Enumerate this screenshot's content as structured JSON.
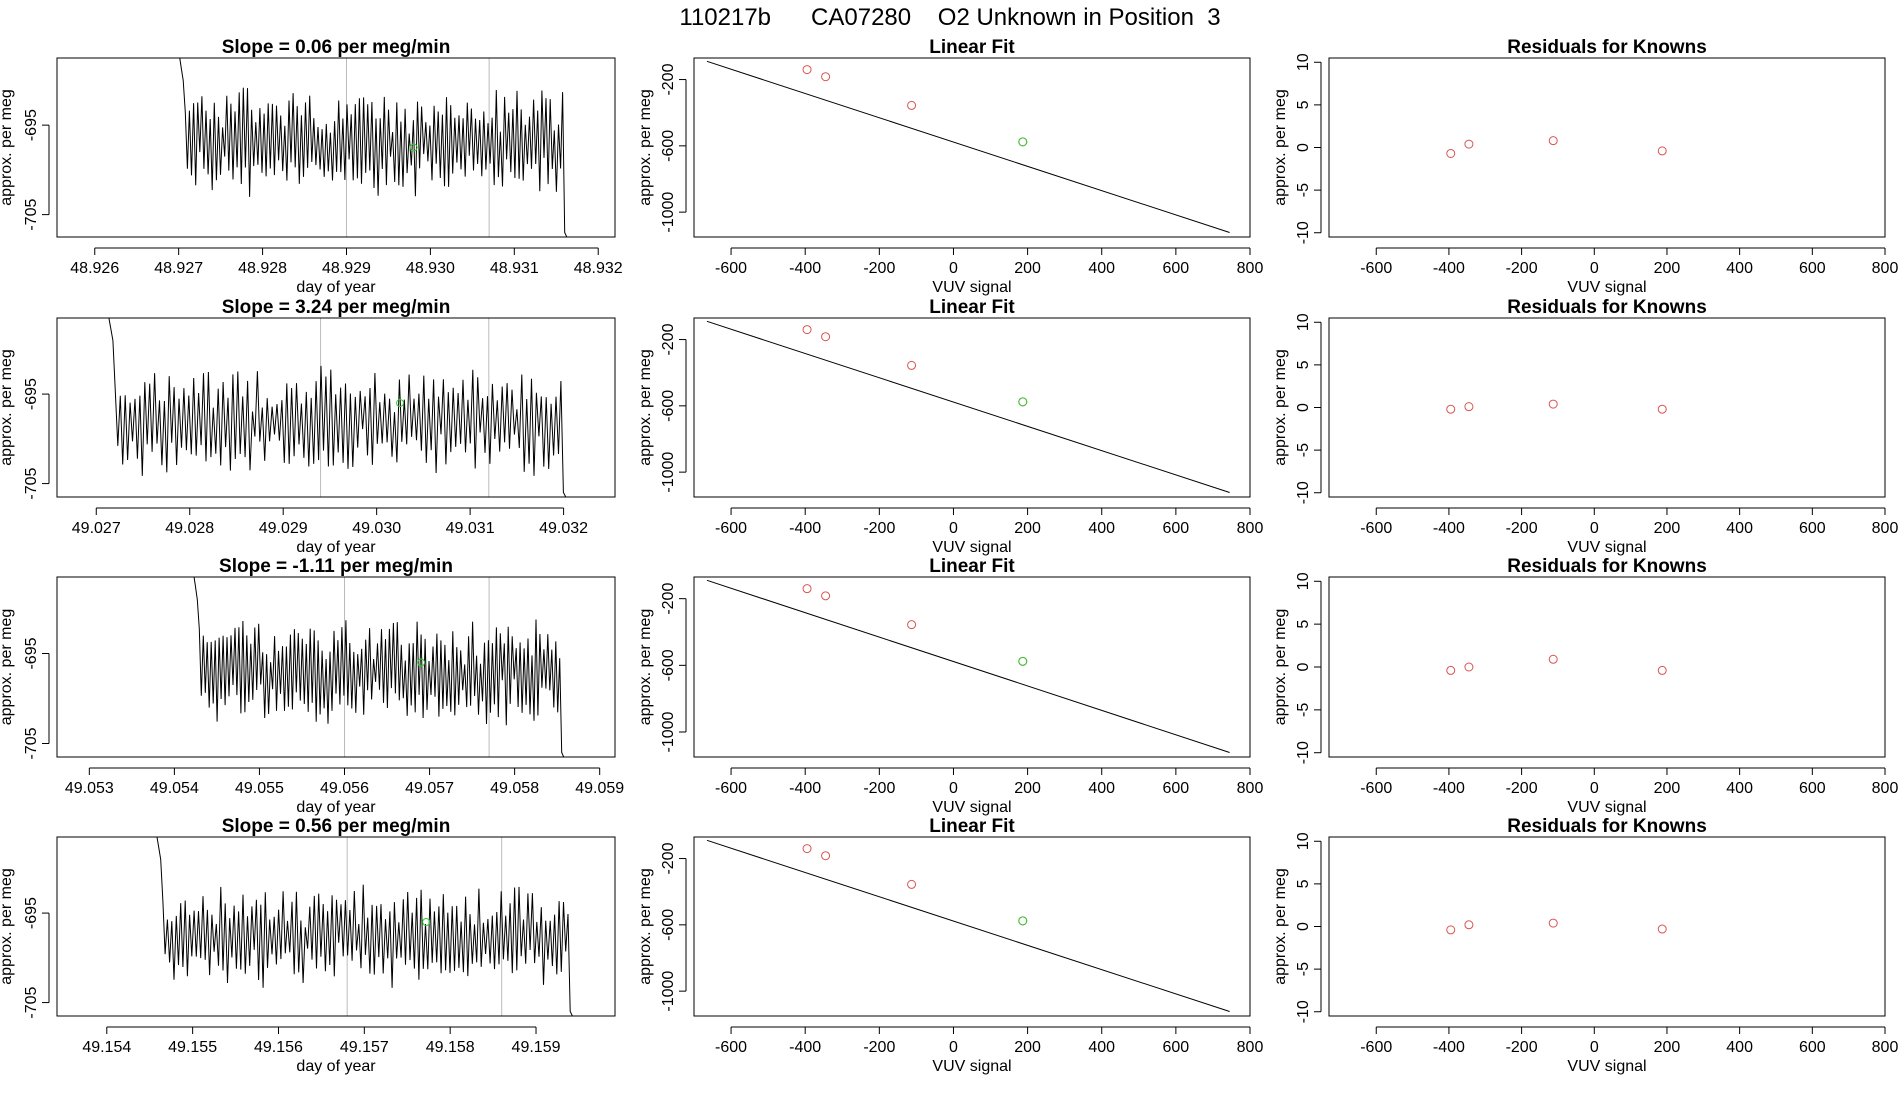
{
  "title": "110217b      CA07280    O2 Unknown in Position  3",
  "colors": {
    "trace": "#000000",
    "vline": "#bbbbbb",
    "known": "#d9534f",
    "unknown": "#33cc33",
    "axis": "#000000"
  },
  "chart_data": [
    {
      "type": "line",
      "row": 0,
      "title": "Slope =  0.06  per meg/min",
      "xlabel": "day of year",
      "ylabel": "approx. per meg",
      "xlim": [
        48.92555,
        48.9322
      ],
      "ylim": [
        -707.5,
        -687.5
      ],
      "xticks": [
        48.926,
        48.927,
        48.928,
        48.929,
        48.93,
        48.931,
        48.932
      ],
      "xtick_labels": [
        "48.926",
        "48.927",
        "48.928",
        "48.929",
        "48.930",
        "48.931",
        "48.932"
      ],
      "yticks": [
        -705,
        -695
      ],
      "ytick_labels": [
        "-705",
        "-695"
      ],
      "vlines": [
        48.929,
        48.9307
      ],
      "trace_x_range": [
        48.92698,
        48.93165
      ],
      "trace_amp": 5,
      "trace_center": -697,
      "seed": 3,
      "point": {
        "x": 48.9298,
        "y": -697.5
      }
    },
    {
      "type": "line",
      "row": 1,
      "title": "Slope =  3.24  per meg/min",
      "xlabel": "day of year",
      "ylabel": "approx. per meg",
      "xlim": [
        49.02658,
        49.03255
      ],
      "ylim": [
        -706.5,
        -686.5
      ],
      "xticks": [
        49.027,
        49.028,
        49.029,
        49.03,
        49.031,
        49.032
      ],
      "xtick_labels": [
        "49.027",
        "49.028",
        "49.029",
        "49.030",
        "49.031",
        "49.032"
      ],
      "yticks": [
        -705,
        -695
      ],
      "ytick_labels": [
        "-705",
        "-695"
      ],
      "vlines": [
        49.0294,
        49.0312
      ],
      "trace_x_range": [
        49.0271,
        49.03205
      ],
      "trace_amp": 5,
      "trace_center": -698,
      "seed": 7,
      "point": {
        "x": 49.03025,
        "y": -696
      }
    },
    {
      "type": "line",
      "row": 2,
      "title": "Slope =  -1.11  per meg/min",
      "xlabel": "day of year",
      "ylabel": "approx. per meg",
      "xlim": [
        49.05262,
        49.05918
      ],
      "ylim": [
        -706.5,
        -686.5
      ],
      "xticks": [
        49.053,
        49.054,
        49.055,
        49.056,
        49.057,
        49.058,
        49.059
      ],
      "xtick_labels": [
        "49.053",
        "49.054",
        "49.055",
        "49.056",
        "49.057",
        "49.058",
        "49.059"
      ],
      "yticks": [
        -705,
        -695
      ],
      "ytick_labels": [
        "-705",
        "-695"
      ],
      "vlines": [
        49.056,
        49.0577
      ],
      "trace_x_range": [
        49.0542,
        49.0586
      ],
      "trace_amp": 5,
      "trace_center": -697,
      "seed": 11,
      "point": {
        "x": 49.0569,
        "y": -696
      }
    },
    {
      "type": "line",
      "row": 3,
      "title": "Slope =  0.56  per meg/min",
      "xlabel": "day of year",
      "ylabel": "approx. per meg",
      "xlim": [
        49.15342,
        49.15992
      ],
      "ylim": [
        -706.5,
        -686.5
      ],
      "xticks": [
        49.154,
        49.155,
        49.156,
        49.157,
        49.158,
        49.159
      ],
      "xtick_labels": [
        "49.154",
        "49.155",
        "49.156",
        "49.157",
        "49.158",
        "49.159"
      ],
      "yticks": [
        -705,
        -695
      ],
      "ytick_labels": [
        "-705",
        "-695"
      ],
      "vlines": [
        49.1568,
        49.1586
      ],
      "trace_x_range": [
        49.15455,
        49.15945
      ],
      "trace_amp": 4.5,
      "trace_center": -697.5,
      "seed": 17,
      "point": {
        "x": 49.15772,
        "y": -696
      }
    },
    {
      "type": "scatter",
      "row": 0,
      "title": "Linear Fit",
      "xlabel": "VUV signal",
      "ylabel": "approx. per meg",
      "xlim": [
        -700,
        800
      ],
      "ylim": [
        -1150,
        -70
      ],
      "xticks": [
        -600,
        -400,
        -200,
        0,
        200,
        400,
        600,
        800
      ],
      "xtick_labels": [
        "-600",
        "-400",
        "-200",
        "0",
        "200",
        "400",
        "600",
        "800"
      ],
      "yticks": [
        -200,
        -600,
        -1000
      ],
      "ytick_labels": [
        "-200",
        "-600",
        "-1000"
      ],
      "fit_line": {
        "x": [
          -665,
          745
        ],
        "y": [
          -90,
          -1123
        ]
      },
      "knowns": {
        "x": [
          -395,
          -345,
          -113,
          187
        ],
        "y": [
          -140,
          -183,
          -356,
          -576
        ]
      },
      "unknown": {
        "x": [
          187
        ],
        "y": [
          -576
        ]
      }
    },
    {
      "type": "scatter",
      "row": 1,
      "title": "Linear Fit",
      "xlabel": "VUV signal",
      "ylabel": "approx. per meg",
      "xlim": [
        -700,
        800
      ],
      "ylim": [
        -1150,
        -70
      ],
      "xticks": [
        -600,
        -400,
        -200,
        0,
        200,
        400,
        600,
        800
      ],
      "xtick_labels": [
        "-600",
        "-400",
        "-200",
        "0",
        "200",
        "400",
        "600",
        "800"
      ],
      "yticks": [
        -200,
        -600,
        -1000
      ],
      "ytick_labels": [
        "-200",
        "-600",
        "-1000"
      ],
      "fit_line": {
        "x": [
          -665,
          745
        ],
        "y": [
          -90,
          -1123
        ]
      },
      "knowns": {
        "x": [
          -395,
          -345,
          -113,
          187
        ],
        "y": [
          -140,
          -183,
          -356,
          -576
        ]
      },
      "unknown": {
        "x": [
          187
        ],
        "y": [
          -576
        ]
      }
    },
    {
      "type": "scatter",
      "row": 2,
      "title": "Linear Fit",
      "xlabel": "VUV signal",
      "ylabel": "approx. per meg",
      "xlim": [
        -700,
        800
      ],
      "ylim": [
        -1150,
        -70
      ],
      "xticks": [
        -600,
        -400,
        -200,
        0,
        200,
        400,
        600,
        800
      ],
      "xtick_labels": [
        "-600",
        "-400",
        "-200",
        "0",
        "200",
        "400",
        "600",
        "800"
      ],
      "yticks": [
        -200,
        -600,
        -1000
      ],
      "ytick_labels": [
        "-200",
        "-600",
        "-1000"
      ],
      "fit_line": {
        "x": [
          -665,
          745
        ],
        "y": [
          -90,
          -1123
        ]
      },
      "knowns": {
        "x": [
          -395,
          -345,
          -113,
          187
        ],
        "y": [
          -140,
          -183,
          -356,
          -576
        ]
      },
      "unknown": {
        "x": [
          187
        ],
        "y": [
          -576
        ]
      }
    },
    {
      "type": "scatter",
      "row": 3,
      "title": "Linear Fit",
      "xlabel": "VUV signal",
      "ylabel": "approx. per meg",
      "xlim": [
        -700,
        800
      ],
      "ylim": [
        -1150,
        -70
      ],
      "xticks": [
        -600,
        -400,
        -200,
        0,
        200,
        400,
        600,
        800
      ],
      "xtick_labels": [
        "-600",
        "-400",
        "-200",
        "0",
        "200",
        "400",
        "600",
        "800"
      ],
      "yticks": [
        -200,
        -600,
        -1000
      ],
      "ytick_labels": [
        "-200",
        "-600",
        "-1000"
      ],
      "fit_line": {
        "x": [
          -665,
          745
        ],
        "y": [
          -90,
          -1123
        ]
      },
      "knowns": {
        "x": [
          -395,
          -345,
          -113,
          187
        ],
        "y": [
          -140,
          -183,
          -356,
          -576
        ]
      },
      "unknown": {
        "x": [
          187
        ],
        "y": [
          -576
        ]
      }
    },
    {
      "type": "scatter",
      "row": 0,
      "title": "Residuals for Knowns",
      "xlabel": "VUV signal",
      "ylabel": "approx. per meg",
      "xlim": [
        -730,
        800
      ],
      "ylim": [
        -10.5,
        10.5
      ],
      "xticks": [
        -600,
        -400,
        -200,
        0,
        200,
        400,
        600,
        800
      ],
      "xtick_labels": [
        "-600",
        "-400",
        "-200",
        "0",
        "200",
        "400",
        "600",
        "800"
      ],
      "yticks": [
        -10,
        -5,
        0,
        5,
        10
      ],
      "ytick_labels": [
        "-10",
        "-5",
        "0",
        "5",
        "10"
      ],
      "knowns": {
        "x": [
          -395,
          -345,
          -113,
          187
        ],
        "y": [
          -0.7,
          0.4,
          0.8,
          -0.4
        ]
      }
    },
    {
      "type": "scatter",
      "row": 1,
      "title": "Residuals for Knowns",
      "xlabel": "VUV signal",
      "ylabel": "approx. per meg",
      "xlim": [
        -730,
        800
      ],
      "ylim": [
        -10.5,
        10.5
      ],
      "xticks": [
        -600,
        -400,
        -200,
        0,
        200,
        400,
        600,
        800
      ],
      "xtick_labels": [
        "-600",
        "-400",
        "-200",
        "0",
        "200",
        "400",
        "600",
        "800"
      ],
      "yticks": [
        -10,
        -5,
        0,
        5,
        10
      ],
      "ytick_labels": [
        "-10",
        "-5",
        "0",
        "5",
        "10"
      ],
      "knowns": {
        "x": [
          -395,
          -345,
          -113,
          187
        ],
        "y": [
          -0.2,
          0.1,
          0.4,
          -0.2
        ]
      }
    },
    {
      "type": "scatter",
      "row": 2,
      "title": "Residuals for Knowns",
      "xlabel": "VUV signal",
      "ylabel": "approx. per meg",
      "xlim": [
        -730,
        800
      ],
      "ylim": [
        -10.5,
        10.5
      ],
      "xticks": [
        -600,
        -400,
        -200,
        0,
        200,
        400,
        600,
        800
      ],
      "xtick_labels": [
        "-600",
        "-400",
        "-200",
        "0",
        "200",
        "400",
        "600",
        "800"
      ],
      "yticks": [
        -10,
        -5,
        0,
        5,
        10
      ],
      "ytick_labels": [
        "-10",
        "-5",
        "0",
        "5",
        "10"
      ],
      "knowns": {
        "x": [
          -395,
          -345,
          -113,
          187
        ],
        "y": [
          -0.4,
          0,
          0.9,
          -0.4
        ]
      }
    },
    {
      "type": "scatter",
      "row": 3,
      "title": "Residuals for Knowns",
      "xlabel": "VUV signal",
      "ylabel": "approx. per meg",
      "xlim": [
        -730,
        800
      ],
      "ylim": [
        -10.5,
        10.5
      ],
      "xticks": [
        -600,
        -400,
        -200,
        0,
        200,
        400,
        600,
        800
      ],
      "xtick_labels": [
        "-600",
        "-400",
        "-200",
        "0",
        "200",
        "400",
        "600",
        "800"
      ],
      "yticks": [
        -10,
        -5,
        0,
        5,
        10
      ],
      "ytick_labels": [
        "-10",
        "-5",
        "0",
        "5",
        "10"
      ],
      "knowns": {
        "x": [
          -395,
          -345,
          -113,
          187
        ],
        "y": [
          -0.4,
          0.2,
          0.4,
          -0.3
        ]
      }
    }
  ]
}
